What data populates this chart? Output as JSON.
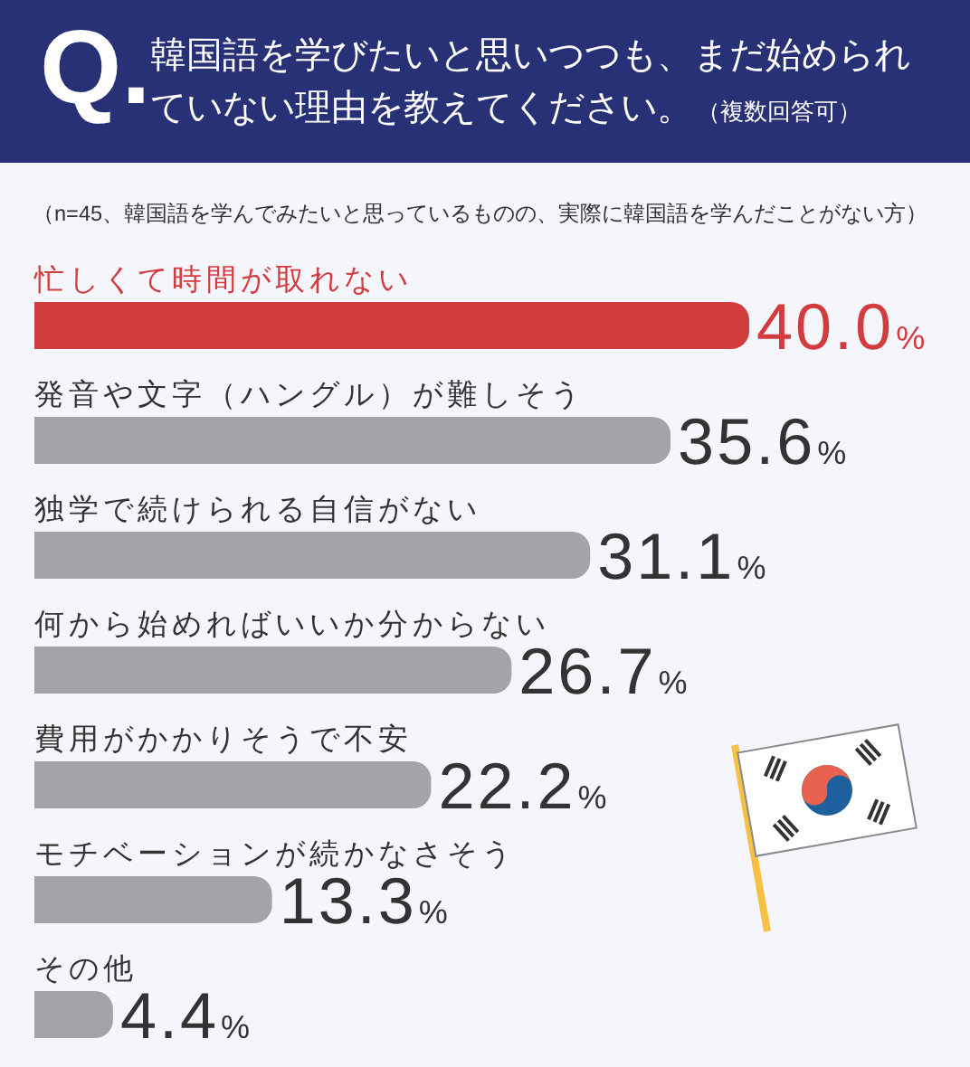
{
  "chart_data": {
    "type": "bar",
    "orientation": "horizontal",
    "title": "韓国語を学びたいと思いつつも、まだ始められていない理由を教えてください。（複数回答可）",
    "subtitle": "（n=45、韓国語を学んでみたいと思っているものの、実際に韓国語を学んだことがない方）",
    "annotations": [
      "Q."
    ],
    "categories": [
      "忙しくて時間が取れない",
      "発音や文字（ハングル）が難しそう",
      "独学で続けられる自信がない",
      "何から始めればいいか分からない",
      "費用がかかりそうで不安",
      "モチベーションが続かなさそう",
      "その他"
    ],
    "values": [
      40.0,
      35.6,
      31.1,
      26.7,
      22.2,
      13.3,
      4.4
    ],
    "colors": [
      "#d23c3f",
      "#a3a4a8",
      "#a3a4a8",
      "#a3a4a8",
      "#a3a4a8",
      "#a3a4a8",
      "#a3a4a8"
    ],
    "value_labels": [
      "40.0%",
      "35.6%",
      "31.1%",
      "26.7%",
      "22.2%",
      "13.3%",
      "4.4%"
    ]
  }
}
